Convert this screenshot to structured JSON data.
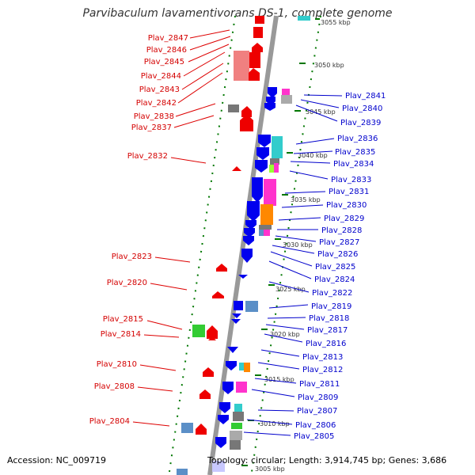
{
  "title": "Parvibaculum lavamentivorans DS-1, complete genome",
  "footer": {
    "accession": "Accession: NC_009719",
    "stats": "Topology: circular; Length: 3,914,745 bp; Genes: 3,686"
  },
  "colors": {
    "forward": "#ee0000",
    "reverse": "#0000ee",
    "backbone": "#999999",
    "ticks": "#007700"
  },
  "kbp_markers": [
    "3055 kbp",
    "3050 kbp",
    "3045 kbp",
    "3040 kbp",
    "3035 kbp",
    "3030 kbp",
    "3025 kbp",
    "3020 kbp",
    "3015 kbp",
    "3010 kbp",
    "3005 kbp"
  ],
  "left_labels": [
    "Plav_2847",
    "Plav_2846",
    "Plav_2845",
    "Plav_2844",
    "Plav_2843",
    "Plav_2842",
    "Plav_2838",
    "Plav_2837",
    "Plav_2832",
    "Plav_2823",
    "Plav_2820",
    "Plav_2815",
    "Plav_2814",
    "Plav_2810",
    "Plav_2808",
    "Plav_2804"
  ],
  "right_labels": [
    "Plav_2841",
    "Plav_2840",
    "Plav_2839",
    "Plav_2836",
    "Plav_2835",
    "Plav_2834",
    "Plav_2833",
    "Plav_2831",
    "Plav_2830",
    "Plav_2829",
    "Plav_2828",
    "Plav_2827",
    "Plav_2826",
    "Plav_2825",
    "Plav_2824",
    "Plav_2822",
    "Plav_2819",
    "Plav_2818",
    "Plav_2817",
    "Plav_2816",
    "Plav_2813",
    "Plav_2812",
    "Plav_2811",
    "Plav_2809",
    "Plav_2807",
    "Plav_2806",
    "Plav_2805"
  ]
}
